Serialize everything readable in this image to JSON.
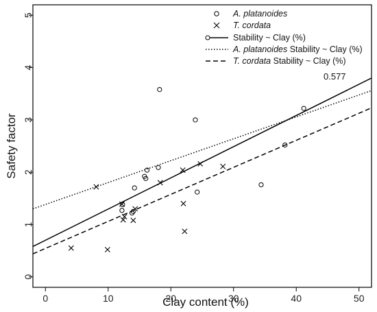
{
  "chart_data": {
    "type": "scatter",
    "xlabel": "Clay content (%)",
    "ylabel": "Safety factor",
    "xlim": [
      -2,
      52
    ],
    "ylim": [
      -0.2,
      5.2
    ],
    "x_ticks": [
      0,
      10,
      20,
      30,
      40,
      50
    ],
    "y_ticks": [
      0,
      1,
      2,
      3,
      4,
      5
    ],
    "legend_position": "top-right",
    "annotation": "0.577",
    "series": [
      {
        "name": "A. platanoides",
        "marker": "circle",
        "points": [
          [
            12.2,
            1.27
          ],
          [
            12.3,
            1.38
          ],
          [
            13.8,
            1.22
          ],
          [
            14.0,
            1.25
          ],
          [
            14.2,
            1.7
          ],
          [
            15.8,
            1.92
          ],
          [
            16.0,
            1.88
          ],
          [
            16.2,
            2.04
          ],
          [
            18.0,
            2.09
          ],
          [
            18.2,
            3.58
          ],
          [
            23.9,
            3.0
          ],
          [
            24.2,
            1.62
          ],
          [
            34.4,
            1.76
          ],
          [
            38.2,
            2.52
          ],
          [
            41.2,
            3.22
          ]
        ]
      },
      {
        "name": "T. cordata",
        "marker": "cross",
        "points": [
          [
            4.1,
            0.55
          ],
          [
            8.1,
            1.72
          ],
          [
            9.9,
            0.52
          ],
          [
            12.2,
            1.39
          ],
          [
            12.4,
            1.09
          ],
          [
            12.6,
            1.15
          ],
          [
            14.0,
            1.08
          ],
          [
            14.3,
            1.3
          ],
          [
            18.3,
            1.8
          ],
          [
            21.9,
            2.04
          ],
          [
            22.0,
            1.4
          ],
          [
            22.2,
            0.87
          ],
          [
            24.7,
            2.16
          ],
          [
            28.3,
            2.11
          ]
        ]
      }
    ],
    "trend_lines": [
      {
        "name": "Stability ~ Clay (%)",
        "style": "solid",
        "x": [
          -2,
          52
        ],
        "y": [
          0.58,
          3.8
        ]
      },
      {
        "name": "Stability ~ Clay (%)",
        "name_italic_prefix": "A. platanoides",
        "style": "dotted",
        "x": [
          -2,
          52
        ],
        "y": [
          1.3,
          3.56
        ]
      },
      {
        "name": "Stability ~ Clay (%)",
        "name_italic_prefix": "T. cordata",
        "style": "dashed",
        "x": [
          -2,
          52
        ],
        "y": [
          0.44,
          3.23
        ]
      }
    ]
  }
}
